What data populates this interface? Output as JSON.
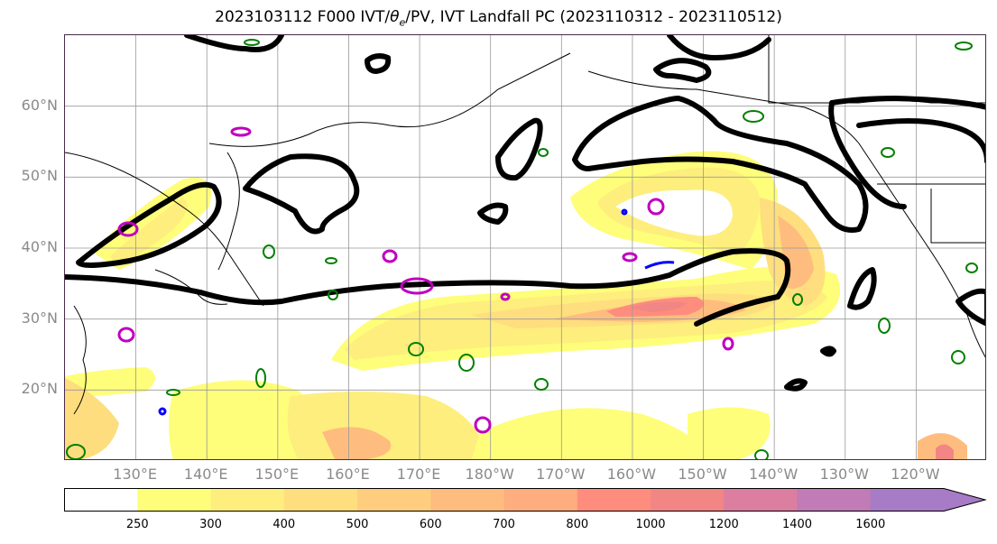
{
  "title": "2023103112 F000 IVT/θe/PV, IVT Landfall PC (2023110312 - 2023110512)",
  "title_parts": {
    "pre": "2023103112 F000 IVT/",
    "theta": "θ",
    "sub": "e",
    "post": "/PV, IVT Landfall PC (2023110312 - 2023110512)"
  },
  "map": {
    "lat_labels": [
      {
        "label": "60°N",
        "lat": 60
      },
      {
        "label": "50°N",
        "lat": 50
      },
      {
        "label": "40°N",
        "lat": 40
      },
      {
        "label": "30°N",
        "lat": 30
      },
      {
        "label": "20°N",
        "lat": 20
      }
    ],
    "lon_labels": [
      "130°E",
      "140°E",
      "150°E",
      "160°E",
      "170°E",
      "180°W",
      "170°W",
      "160°W",
      "150°W",
      "140°W",
      "130°W",
      "120°W"
    ],
    "lon_extent": [
      120,
      250
    ],
    "lat_extent": [
      10,
      70
    ],
    "colors": {
      "pc_contour": "#000000",
      "pv": "#c000c0",
      "theta": "#008000",
      "blue": "#0000ff",
      "grid": "#999999"
    }
  },
  "colorbar": {
    "ticks": [
      "250",
      "300",
      "400",
      "500",
      "600",
      "700",
      "800",
      "1000",
      "1200",
      "1400",
      "1600"
    ],
    "colors": [
      "#ffffff",
      "#fefe7a",
      "#feee7d",
      "#fede7e",
      "#fece7e",
      "#febd7e",
      "#fead7e",
      "#fe8d7e",
      "#f18685",
      "#db7ea0",
      "#c17bb6",
      "#a77bc6"
    ],
    "extend": "max"
  }
}
